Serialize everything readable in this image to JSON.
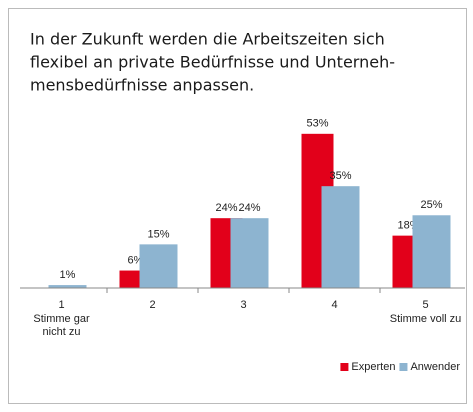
{
  "chart_data": {
    "type": "bar",
    "title": [
      "In der Zukunft werden die Arbeitszeiten sich",
      "flexibel an private Bedürfnisse und Unterneh-",
      "mensbedürfnisse anpassen."
    ],
    "categories": [
      "1",
      "2",
      "3",
      "4",
      "5"
    ],
    "category_sublabels": [
      [
        "Stimme gar",
        "nicht zu"
      ],
      null,
      null,
      null,
      [
        "Stimme voll zu"
      ]
    ],
    "series": [
      {
        "name": "Experten",
        "color": "#e2001a",
        "values": [
          null,
          6,
          24,
          53,
          18
        ],
        "value_labels": [
          null,
          "6%",
          "24%",
          "53%",
          "18%"
        ]
      },
      {
        "name": "Anwender",
        "color": "#8db4d0",
        "values": [
          1,
          15,
          24,
          35,
          25
        ],
        "value_labels": [
          "1%",
          "15%",
          "24%",
          "35%",
          "25%"
        ]
      }
    ],
    "ylim": [
      0,
      55
    ],
    "legend": "bottom-right"
  }
}
